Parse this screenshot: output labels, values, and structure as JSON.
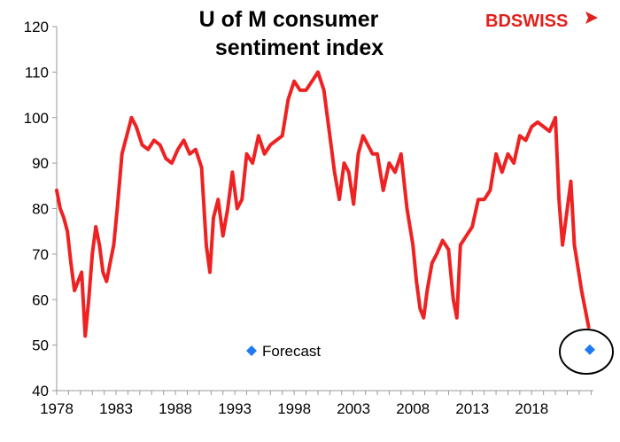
{
  "chart_data": {
    "type": "line",
    "title_line1": "U of M consumer",
    "title_line2": "sentiment index",
    "xlabel": "",
    "ylabel": "",
    "xlim": [
      1978.0,
      2023.2
    ],
    "ylim": [
      40,
      120
    ],
    "y_ticks": [
      "40",
      "50",
      "60",
      "70",
      "80",
      "90",
      "100",
      "110",
      "120"
    ],
    "x_ticks": [
      "1978",
      "1983",
      "1988",
      "1993",
      "1998",
      "2003",
      "2008",
      "2013",
      "2018"
    ],
    "grid": false,
    "series": [
      {
        "name": "",
        "color": "#ee2222",
        "x": [
          1978.0,
          1978.3,
          1978.6,
          1978.9,
          1979.2,
          1979.5,
          1979.8,
          1980.1,
          1980.4,
          1980.7,
          1981.0,
          1981.3,
          1981.6,
          1981.9,
          1982.2,
          1982.5,
          1982.8,
          1983.1,
          1983.5,
          1983.9,
          1984.3,
          1984.7,
          1985.2,
          1985.7,
          1986.2,
          1986.7,
          1987.2,
          1987.7,
          1988.2,
          1988.7,
          1989.2,
          1989.7,
          1990.2,
          1990.6,
          1990.9,
          1991.2,
          1991.6,
          1992.0,
          1992.4,
          1992.8,
          1993.2,
          1993.6,
          1994.0,
          1994.5,
          1995.0,
          1995.5,
          1996.0,
          1996.5,
          1997.0,
          1997.5,
          1998.0,
          1998.5,
          1999.0,
          1999.5,
          2000.0,
          2000.5,
          2001.0,
          2001.4,
          2001.8,
          2002.2,
          2002.6,
          2003.0,
          2003.4,
          2003.8,
          2004.2,
          2004.6,
          2005.0,
          2005.5,
          2006.0,
          2006.5,
          2007.0,
          2007.5,
          2008.0,
          2008.3,
          2008.6,
          2008.9,
          2009.2,
          2009.6,
          2010.0,
          2010.5,
          2011.0,
          2011.4,
          2011.7,
          2012.0,
          2012.5,
          2013.0,
          2013.5,
          2014.0,
          2014.5,
          2015.0,
          2015.5,
          2016.0,
          2016.5,
          2017.0,
          2017.5,
          2018.0,
          2018.5,
          2019.0,
          2019.5,
          2020.0,
          2020.3,
          2020.6,
          2021.0,
          2021.3,
          2021.6,
          2021.9,
          2022.2,
          2022.5,
          2022.8
        ],
        "y": [
          84,
          80,
          78,
          75,
          68,
          62,
          64,
          66,
          52,
          60,
          70,
          76,
          72,
          66,
          64,
          68,
          72,
          80,
          92,
          96,
          100,
          98,
          94,
          93,
          95,
          94,
          91,
          90,
          93,
          95,
          92,
          93,
          89,
          72,
          66,
          78,
          82,
          74,
          80,
          88,
          80,
          82,
          92,
          90,
          96,
          92,
          94,
          95,
          96,
          104,
          108,
          106,
          106,
          108,
          110,
          106,
          96,
          88,
          82,
          90,
          88,
          81,
          92,
          96,
          94,
          92,
          92,
          84,
          90,
          88,
          92,
          80,
          72,
          64,
          58,
          56,
          62,
          68,
          70,
          73,
          71,
          60,
          56,
          72,
          74,
          76,
          82,
          82,
          84,
          92,
          88,
          92,
          90,
          96,
          95,
          98,
          99,
          98,
          97,
          100,
          82,
          72,
          80,
          86,
          72,
          67,
          62,
          58,
          54
        ]
      }
    ],
    "forecast": {
      "label": "Forecast",
      "x": 2022.9,
      "y": 49,
      "color": "#1e7bf0"
    },
    "brand": {
      "part1": "BD",
      "part2": "SWISS",
      "color": "#e0201b"
    }
  }
}
